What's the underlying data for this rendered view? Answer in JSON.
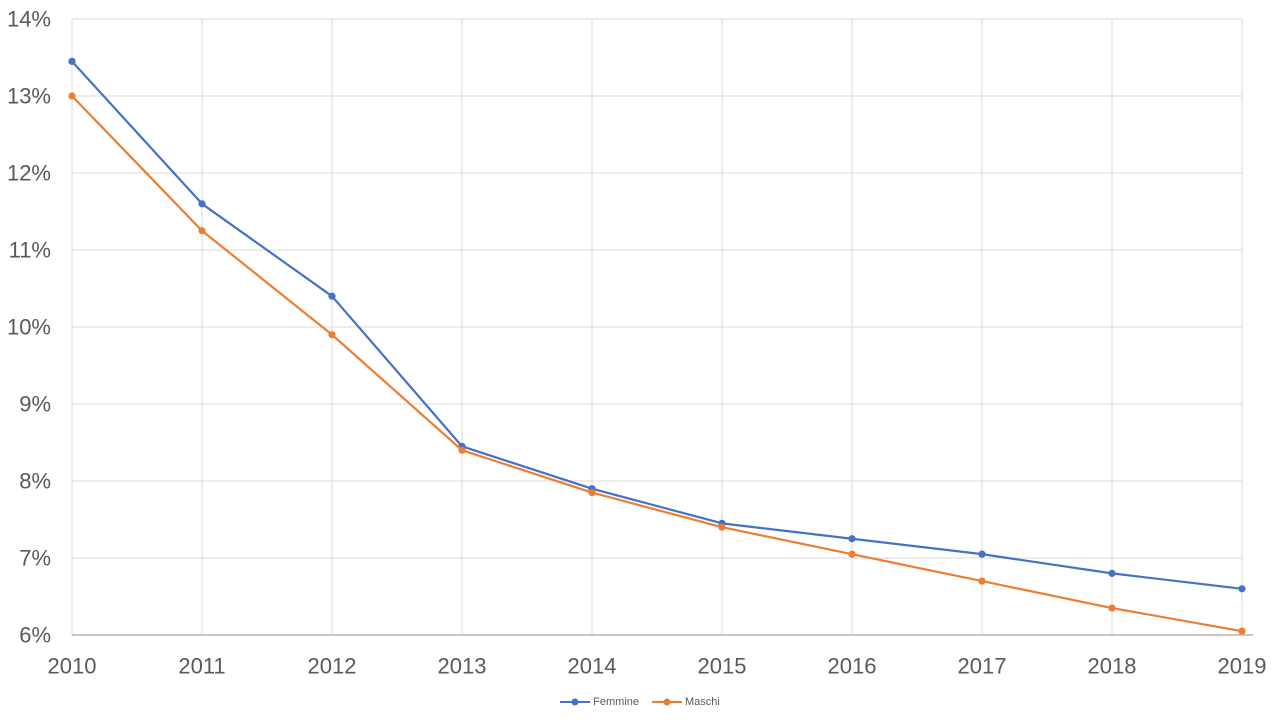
{
  "chart_data": {
    "type": "line",
    "title": "",
    "xlabel": "",
    "ylabel": "",
    "categories": [
      "2010",
      "2011",
      "2012",
      "2013",
      "2014",
      "2015",
      "2016",
      "2017",
      "2018",
      "2019"
    ],
    "series": [
      {
        "name": "Femmine",
        "color": "#4472C4",
        "values": [
          13.45,
          11.6,
          10.4,
          8.45,
          7.9,
          7.45,
          7.25,
          7.05,
          6.8,
          6.6
        ]
      },
      {
        "name": "Maschi",
        "color": "#ED7D31",
        "values": [
          13.0,
          11.25,
          9.9,
          8.4,
          7.85,
          7.4,
          7.05,
          6.7,
          6.35,
          6.05
        ]
      }
    ],
    "ylim": [
      6,
      14
    ],
    "ytick_step": 1,
    "ytick_labels": [
      "14%",
      "13%",
      "12%",
      "11%",
      "10%",
      "9%",
      "8%",
      "7%",
      "6%"
    ],
    "grid": true,
    "legend_position": "bottom",
    "colors": {
      "background": "#FFFFFF",
      "gridline": "#D9D9D9",
      "axis_line": "#BFBFBF",
      "tick_label": "#595959",
      "legend_text": "#595959"
    }
  }
}
